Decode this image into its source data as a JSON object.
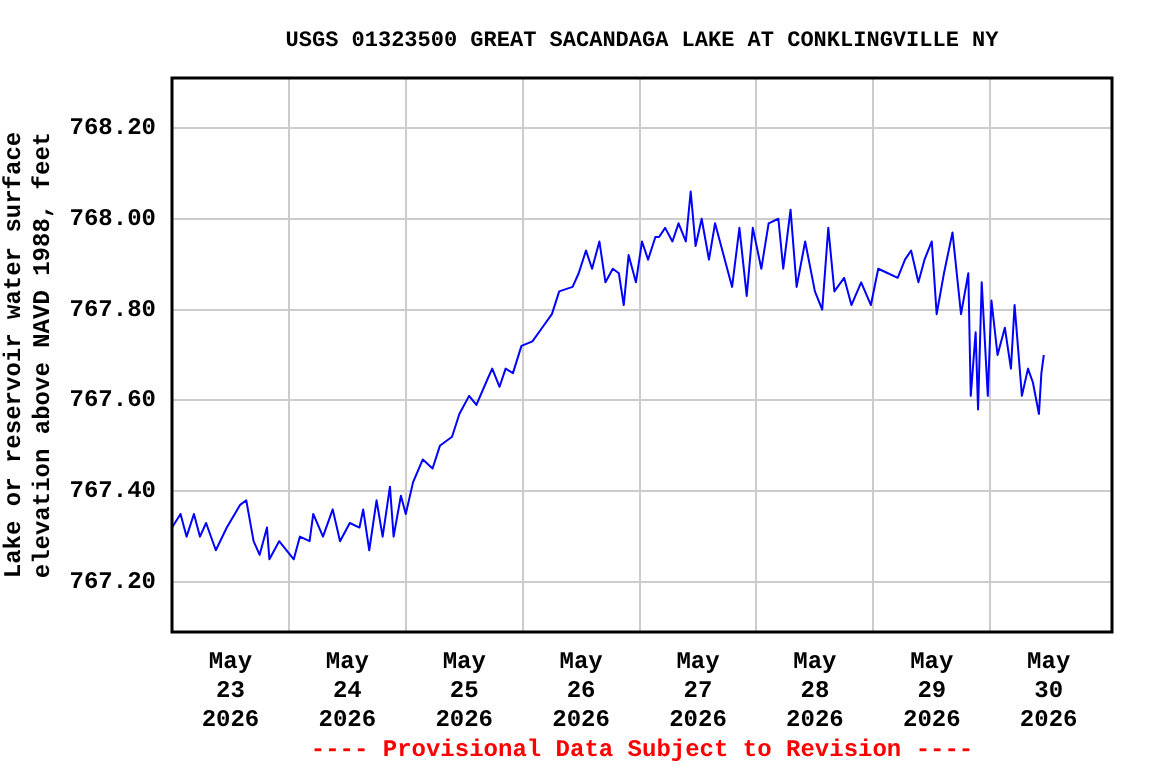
{
  "chart_data": {
    "type": "line",
    "title": "USGS 01323500 GREAT SACANDAGA LAKE AT CONKLINGVILLE NY",
    "ylabel": "Lake or reservoir water surface\nelevation above NAVD 1988, feet",
    "annotations": [
      "---- Provisional Data Subject to Revision ----"
    ],
    "grid": true,
    "xlim": [
      "2026-05-23T00:00",
      "2026-05-31T01:00"
    ],
    "xticks": [
      {
        "value": "2026-05-23T12:00",
        "label": "May\n23\n2026"
      },
      {
        "value": "2026-05-24T00:00",
        "label": null
      },
      {
        "value": "2026-05-24T12:00",
        "label": "May\n24\n2026"
      },
      {
        "value": "2026-05-25T00:00",
        "label": null
      },
      {
        "value": "2026-05-25T12:00",
        "label": "May\n25\n2026"
      },
      {
        "value": "2026-05-26T00:00",
        "label": null
      },
      {
        "value": "2026-05-26T12:00",
        "label": "May\n26\n2026"
      },
      {
        "value": "2026-05-27T00:00",
        "label": null
      },
      {
        "value": "2026-05-27T12:00",
        "label": "May\n27\n2026"
      },
      {
        "value": "2026-05-28T00:00",
        "label": null
      },
      {
        "value": "2026-05-28T12:00",
        "label": "May\n28\n2026"
      },
      {
        "value": "2026-05-29T00:00",
        "label": null
      },
      {
        "value": "2026-05-29T12:00",
        "label": "May\n29\n2026"
      },
      {
        "value": "2026-05-30T00:00",
        "label": null
      },
      {
        "value": "2026-05-30T12:00",
        "label": "May\n30\n2026"
      }
    ],
    "ylim": [
      767.09,
      768.31
    ],
    "yticks": [
      {
        "value": 767.2,
        "label": "767.20"
      },
      {
        "value": 767.4,
        "label": "767.40"
      },
      {
        "value": 767.6,
        "label": "767.60"
      },
      {
        "value": 767.8,
        "label": "767.80"
      },
      {
        "value": 768.0,
        "label": "768.00"
      },
      {
        "value": 768.2,
        "label": "768.20"
      }
    ],
    "x": [
      "2026-05-23T00:00",
      "2026-05-23T01:45",
      "2026-05-23T03:00",
      "2026-05-23T04:30",
      "2026-05-23T05:45",
      "2026-05-23T07:00",
      "2026-05-23T09:00",
      "2026-05-23T11:15",
      "2026-05-23T14:00",
      "2026-05-23T15:15",
      "2026-05-23T16:45",
      "2026-05-23T18:00",
      "2026-05-23T19:30",
      "2026-05-23T20:00",
      "2026-05-23T22:00",
      "2026-05-24T01:00",
      "2026-05-24T02:15",
      "2026-05-24T04:15",
      "2026-05-24T05:00",
      "2026-05-24T07:00",
      "2026-05-24T09:00",
      "2026-05-24T10:30",
      "2026-05-24T12:30",
      "2026-05-24T14:30",
      "2026-05-24T15:15",
      "2026-05-24T16:30",
      "2026-05-24T18:00",
      "2026-05-24T19:15",
      "2026-05-24T20:45",
      "2026-05-24T21:30",
      "2026-05-24T23:00",
      "2026-05-25T00:00",
      "2026-05-25T01:30",
      "2026-05-25T03:30",
      "2026-05-25T05:30",
      "2026-05-25T07:00",
      "2026-05-25T08:15",
      "2026-05-25T09:30",
      "2026-05-25T11:00",
      "2026-05-25T13:00",
      "2026-05-25T14:30",
      "2026-05-25T16:30",
      "2026-05-25T17:45",
      "2026-05-25T19:15",
      "2026-05-25T20:30",
      "2026-05-25T22:00",
      "2026-05-25T23:45",
      "2026-05-26T02:00",
      "2026-05-26T04:00",
      "2026-05-26T06:00",
      "2026-05-26T07:30",
      "2026-05-26T10:15",
      "2026-05-26T11:30",
      "2026-05-26T13:00",
      "2026-05-26T14:15",
      "2026-05-26T15:45",
      "2026-05-26T17:00",
      "2026-05-26T18:30",
      "2026-05-26T19:45",
      "2026-05-26T20:45",
      "2026-05-26T21:45",
      "2026-05-26T23:15",
      "2026-05-27T00:30",
      "2026-05-27T01:45",
      "2026-05-27T03:15",
      "2026-05-27T04:00",
      "2026-05-27T05:15",
      "2026-05-27T06:45",
      "2026-05-27T08:00",
      "2026-05-27T09:30",
      "2026-05-27T10:30",
      "2026-05-27T11:30",
      "2026-05-27T12:45",
      "2026-05-27T14:15",
      "2026-05-27T15:30",
      "2026-05-27T17:30",
      "2026-05-27T19:00",
      "2026-05-27T20:30",
      "2026-05-27T22:00",
      "2026-05-27T23:15",
      "2026-05-28T01:00",
      "2026-05-28T02:30",
      "2026-05-28T04:30",
      "2026-05-28T05:30",
      "2026-05-28T07:00",
      "2026-05-28T08:15",
      "2026-05-28T10:00",
      "2026-05-28T12:00",
      "2026-05-28T13:30",
      "2026-05-28T14:45",
      "2026-05-28T16:00",
      "2026-05-28T18:00",
      "2026-05-28T19:30",
      "2026-05-28T21:30",
      "2026-05-28T23:30",
      "2026-05-29T01:00",
      "2026-05-29T03:00",
      "2026-05-29T05:00",
      "2026-05-29T06:30",
      "2026-05-29T07:45",
      "2026-05-29T09:15",
      "2026-05-29T10:30",
      "2026-05-29T12:00",
      "2026-05-29T13:00",
      "2026-05-29T14:30",
      "2026-05-29T16:15",
      "2026-05-29T18:00",
      "2026-05-29T19:30",
      "2026-05-29T20:00",
      "2026-05-29T21:00",
      "2026-05-29T21:30",
      "2026-05-29T22:15",
      "2026-05-29T23:30",
      "2026-05-30T00:15",
      "2026-05-30T01:30",
      "2026-05-30T03:00",
      "2026-05-30T04:15",
      "2026-05-30T05:00",
      "2026-05-30T06:30",
      "2026-05-30T07:45",
      "2026-05-30T08:45",
      "2026-05-30T10:00",
      "2026-05-30T10:30",
      "2026-05-30T11:00"
    ],
    "series": [
      {
        "color": "#0000ff",
        "values": [
          767.32,
          767.35,
          767.3,
          767.35,
          767.3,
          767.33,
          767.27,
          767.32,
          767.37,
          767.38,
          767.29,
          767.26,
          767.32,
          767.25,
          767.29,
          767.25,
          767.3,
          767.29,
          767.35,
          767.3,
          767.36,
          767.29,
          767.33,
          767.32,
          767.36,
          767.27,
          767.38,
          767.3,
          767.41,
          767.3,
          767.39,
          767.35,
          767.42,
          767.47,
          767.45,
          767.5,
          767.51,
          767.52,
          767.57,
          767.61,
          767.59,
          767.64,
          767.67,
          767.63,
          767.67,
          767.66,
          767.72,
          767.73,
          767.76,
          767.79,
          767.84,
          767.85,
          767.88,
          767.93,
          767.89,
          767.95,
          767.86,
          767.89,
          767.88,
          767.81,
          767.92,
          767.86,
          767.95,
          767.91,
          767.96,
          767.96,
          767.98,
          767.95,
          767.99,
          767.95,
          768.06,
          767.94,
          768.0,
          767.91,
          767.99,
          767.91,
          767.85,
          767.98,
          767.83,
          767.98,
          767.89,
          767.99,
          768.0,
          767.89,
          768.02,
          767.85,
          767.95,
          767.84,
          767.8,
          767.98,
          767.84,
          767.87,
          767.81,
          767.86,
          767.81,
          767.89,
          767.88,
          767.87,
          767.91,
          767.93,
          767.86,
          767.91,
          767.95,
          767.79,
          767.88,
          767.97,
          767.79,
          767.88,
          767.61,
          767.75,
          767.58,
          767.86,
          767.61,
          767.82,
          767.7,
          767.76,
          767.67,
          767.81,
          767.61,
          767.67,
          767.64,
          767.57,
          767.66,
          767.7
        ]
      }
    ]
  }
}
